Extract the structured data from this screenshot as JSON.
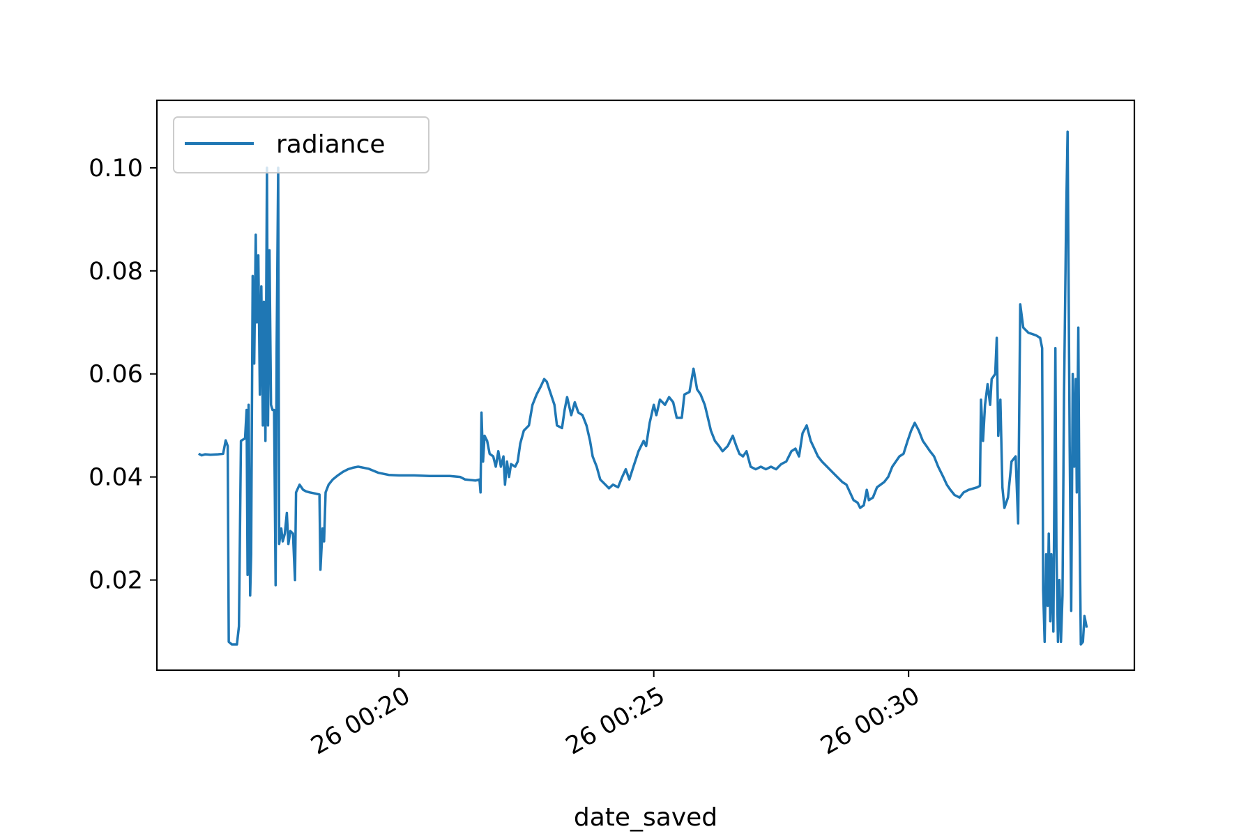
{
  "chart_data": {
    "type": "line",
    "title": "",
    "xlabel": "date_saved",
    "ylabel": "",
    "x_ticks": [
      {
        "value": 20,
        "label": "26 00:20"
      },
      {
        "value": 25,
        "label": "26 00:25"
      },
      {
        "value": 30,
        "label": "26 00:30"
      }
    ],
    "y_ticks": [
      {
        "value": 0.02,
        "label": "0.02"
      },
      {
        "value": 0.04,
        "label": "0.04"
      },
      {
        "value": 0.06,
        "label": "0.06"
      },
      {
        "value": 0.08,
        "label": "0.08"
      },
      {
        "value": 0.1,
        "label": "0.10"
      }
    ],
    "xlim": [
      15.25,
      34.43
    ],
    "ylim": [
      0.0025,
      0.1131
    ],
    "grid": false,
    "legend_position": "upper-left",
    "colors": {
      "series": "#1f77b4",
      "axes": "#000000",
      "legend_border": "#cccccc"
    },
    "series": [
      {
        "name": "radiance",
        "points": [
          [
            16.09,
            0.0444
          ],
          [
            16.13,
            0.0442
          ],
          [
            16.2,
            0.0444
          ],
          [
            16.3,
            0.0443
          ],
          [
            16.45,
            0.0444
          ],
          [
            16.55,
            0.0445
          ],
          [
            16.6,
            0.0471
          ],
          [
            16.64,
            0.046
          ],
          [
            16.66,
            0.008
          ],
          [
            16.72,
            0.0075
          ],
          [
            16.82,
            0.0075
          ],
          [
            16.86,
            0.011
          ],
          [
            16.9,
            0.047
          ],
          [
            16.98,
            0.0475
          ],
          [
            17.01,
            0.053
          ],
          [
            17.03,
            0.021
          ],
          [
            17.05,
            0.054
          ],
          [
            17.08,
            0.017
          ],
          [
            17.1,
            0.025
          ],
          [
            17.13,
            0.079
          ],
          [
            17.16,
            0.062
          ],
          [
            17.19,
            0.087
          ],
          [
            17.21,
            0.07
          ],
          [
            17.24,
            0.083
          ],
          [
            17.27,
            0.056
          ],
          [
            17.3,
            0.077
          ],
          [
            17.33,
            0.05
          ],
          [
            17.35,
            0.074
          ],
          [
            17.38,
            0.047
          ],
          [
            17.41,
            0.1
          ],
          [
            17.43,
            0.05
          ],
          [
            17.46,
            0.084
          ],
          [
            17.49,
            0.054
          ],
          [
            17.52,
            0.053
          ],
          [
            17.55,
            0.053
          ],
          [
            17.58,
            0.019
          ],
          [
            17.6,
            0.065
          ],
          [
            17.63,
            0.1
          ],
          [
            17.65,
            0.027
          ],
          [
            17.69,
            0.03
          ],
          [
            17.72,
            0.0275
          ],
          [
            17.76,
            0.029
          ],
          [
            17.8,
            0.033
          ],
          [
            17.83,
            0.027
          ],
          [
            17.87,
            0.0295
          ],
          [
            17.92,
            0.029
          ],
          [
            17.96,
            0.02
          ],
          [
            17.98,
            0.037
          ],
          [
            18.05,
            0.0385
          ],
          [
            18.12,
            0.0375
          ],
          [
            18.18,
            0.0372
          ],
          [
            18.25,
            0.037
          ],
          [
            18.35,
            0.0368
          ],
          [
            18.44,
            0.0366
          ],
          [
            18.46,
            0.022
          ],
          [
            18.5,
            0.03
          ],
          [
            18.53,
            0.0275
          ],
          [
            18.56,
            0.037
          ],
          [
            18.62,
            0.0385
          ],
          [
            18.7,
            0.0395
          ],
          [
            18.8,
            0.0403
          ],
          [
            18.9,
            0.041
          ],
          [
            19.0,
            0.0415
          ],
          [
            19.1,
            0.0418
          ],
          [
            19.2,
            0.042
          ],
          [
            19.3,
            0.0418
          ],
          [
            19.4,
            0.0416
          ],
          [
            19.5,
            0.0412
          ],
          [
            19.6,
            0.0408
          ],
          [
            19.8,
            0.0404
          ],
          [
            20.0,
            0.0403
          ],
          [
            20.3,
            0.0403
          ],
          [
            20.6,
            0.0402
          ],
          [
            21.0,
            0.0402
          ],
          [
            21.2,
            0.04
          ],
          [
            21.3,
            0.0395
          ],
          [
            21.5,
            0.0393
          ],
          [
            21.58,
            0.0395
          ],
          [
            21.6,
            0.037
          ],
          [
            21.62,
            0.0525
          ],
          [
            21.65,
            0.043
          ],
          [
            21.68,
            0.048
          ],
          [
            21.73,
            0.047
          ],
          [
            21.78,
            0.0445
          ],
          [
            21.85,
            0.044
          ],
          [
            21.9,
            0.042
          ],
          [
            21.95,
            0.045
          ],
          [
            22.0,
            0.042
          ],
          [
            22.05,
            0.044
          ],
          [
            22.08,
            0.0385
          ],
          [
            22.12,
            0.043
          ],
          [
            22.16,
            0.04
          ],
          [
            22.2,
            0.0425
          ],
          [
            22.28,
            0.042
          ],
          [
            22.33,
            0.043
          ],
          [
            22.38,
            0.0465
          ],
          [
            22.45,
            0.049
          ],
          [
            22.55,
            0.05
          ],
          [
            22.62,
            0.054
          ],
          [
            22.7,
            0.056
          ],
          [
            22.78,
            0.0575
          ],
          [
            22.85,
            0.059
          ],
          [
            22.9,
            0.0585
          ],
          [
            22.95,
            0.057
          ],
          [
            23.05,
            0.054
          ],
          [
            23.1,
            0.05
          ],
          [
            23.2,
            0.0495
          ],
          [
            23.25,
            0.053
          ],
          [
            23.3,
            0.0555
          ],
          [
            23.38,
            0.052
          ],
          [
            23.45,
            0.0545
          ],
          [
            23.52,
            0.0525
          ],
          [
            23.6,
            0.052
          ],
          [
            23.68,
            0.05
          ],
          [
            23.75,
            0.047
          ],
          [
            23.8,
            0.044
          ],
          [
            23.88,
            0.042
          ],
          [
            23.95,
            0.0395
          ],
          [
            24.05,
            0.0385
          ],
          [
            24.12,
            0.0378
          ],
          [
            24.2,
            0.0385
          ],
          [
            24.3,
            0.038
          ],
          [
            24.38,
            0.04
          ],
          [
            24.45,
            0.0415
          ],
          [
            24.52,
            0.0395
          ],
          [
            24.6,
            0.042
          ],
          [
            24.7,
            0.045
          ],
          [
            24.8,
            0.047
          ],
          [
            24.85,
            0.046
          ],
          [
            24.92,
            0.0505
          ],
          [
            25.0,
            0.054
          ],
          [
            25.05,
            0.052
          ],
          [
            25.12,
            0.055
          ],
          [
            25.22,
            0.054
          ],
          [
            25.3,
            0.0555
          ],
          [
            25.38,
            0.0545
          ],
          [
            25.45,
            0.0515
          ],
          [
            25.55,
            0.0515
          ],
          [
            25.6,
            0.056
          ],
          [
            25.7,
            0.0565
          ],
          [
            25.78,
            0.061
          ],
          [
            25.85,
            0.057
          ],
          [
            25.92,
            0.056
          ],
          [
            26.0,
            0.054
          ],
          [
            26.05,
            0.052
          ],
          [
            26.12,
            0.049
          ],
          [
            26.2,
            0.047
          ],
          [
            26.28,
            0.046
          ],
          [
            26.35,
            0.045
          ],
          [
            26.45,
            0.046
          ],
          [
            26.55,
            0.048
          ],
          [
            26.62,
            0.046
          ],
          [
            26.68,
            0.0445
          ],
          [
            26.75,
            0.044
          ],
          [
            26.82,
            0.045
          ],
          [
            26.9,
            0.042
          ],
          [
            27.0,
            0.0415
          ],
          [
            27.1,
            0.042
          ],
          [
            27.2,
            0.0415
          ],
          [
            27.3,
            0.042
          ],
          [
            27.4,
            0.0415
          ],
          [
            27.5,
            0.0425
          ],
          [
            27.6,
            0.043
          ],
          [
            27.7,
            0.045
          ],
          [
            27.78,
            0.0455
          ],
          [
            27.85,
            0.044
          ],
          [
            27.92,
            0.0485
          ],
          [
            28.0,
            0.05
          ],
          [
            28.08,
            0.047
          ],
          [
            28.15,
            0.0455
          ],
          [
            28.22,
            0.044
          ],
          [
            28.3,
            0.043
          ],
          [
            28.4,
            0.042
          ],
          [
            28.5,
            0.041
          ],
          [
            28.6,
            0.04
          ],
          [
            28.7,
            0.039
          ],
          [
            28.78,
            0.0385
          ],
          [
            28.85,
            0.037
          ],
          [
            28.92,
            0.0355
          ],
          [
            29.0,
            0.035
          ],
          [
            29.05,
            0.034
          ],
          [
            29.12,
            0.0345
          ],
          [
            29.18,
            0.0375
          ],
          [
            29.22,
            0.0355
          ],
          [
            29.3,
            0.036
          ],
          [
            29.38,
            0.038
          ],
          [
            29.45,
            0.0385
          ],
          [
            29.52,
            0.039
          ],
          [
            29.6,
            0.04
          ],
          [
            29.68,
            0.042
          ],
          [
            29.75,
            0.043
          ],
          [
            29.82,
            0.044
          ],
          [
            29.9,
            0.0445
          ],
          [
            29.98,
            0.047
          ],
          [
            30.05,
            0.049
          ],
          [
            30.12,
            0.0505
          ],
          [
            30.2,
            0.049
          ],
          [
            30.28,
            0.047
          ],
          [
            30.35,
            0.046
          ],
          [
            30.42,
            0.045
          ],
          [
            30.5,
            0.044
          ],
          [
            30.58,
            0.042
          ],
          [
            30.68,
            0.04
          ],
          [
            30.75,
            0.0385
          ],
          [
            30.82,
            0.0375
          ],
          [
            30.9,
            0.0365
          ],
          [
            31.0,
            0.036
          ],
          [
            31.08,
            0.037
          ],
          [
            31.18,
            0.0375
          ],
          [
            31.28,
            0.0378
          ],
          [
            31.35,
            0.038
          ],
          [
            31.4,
            0.0383
          ],
          [
            31.42,
            0.055
          ],
          [
            31.46,
            0.047
          ],
          [
            31.5,
            0.054
          ],
          [
            31.55,
            0.058
          ],
          [
            31.6,
            0.054
          ],
          [
            31.63,
            0.059
          ],
          [
            31.7,
            0.06
          ],
          [
            31.73,
            0.067
          ],
          [
            31.76,
            0.048
          ],
          [
            31.8,
            0.055
          ],
          [
            31.84,
            0.038
          ],
          [
            31.88,
            0.034
          ],
          [
            31.95,
            0.036
          ],
          [
            32.02,
            0.043
          ],
          [
            32.1,
            0.044
          ],
          [
            32.15,
            0.031
          ],
          [
            32.19,
            0.0735
          ],
          [
            32.25,
            0.069
          ],
          [
            32.35,
            0.068
          ],
          [
            32.5,
            0.0675
          ],
          [
            32.58,
            0.067
          ],
          [
            32.62,
            0.065
          ],
          [
            32.64,
            0.018
          ],
          [
            32.67,
            0.008
          ],
          [
            32.7,
            0.025
          ],
          [
            32.73,
            0.015
          ],
          [
            32.75,
            0.029
          ],
          [
            32.78,
            0.012
          ],
          [
            32.8,
            0.025
          ],
          [
            32.84,
            0.01
          ],
          [
            32.88,
            0.065
          ],
          [
            32.9,
            0.026
          ],
          [
            32.93,
            0.008
          ],
          [
            32.96,
            0.02
          ],
          [
            32.99,
            0.008
          ],
          [
            33.02,
            0.017
          ],
          [
            33.05,
            0.056
          ],
          [
            33.09,
            0.09
          ],
          [
            33.12,
            0.107
          ],
          [
            33.16,
            0.046
          ],
          [
            33.19,
            0.014
          ],
          [
            33.22,
            0.06
          ],
          [
            33.25,
            0.042
          ],
          [
            33.28,
            0.059
          ],
          [
            33.3,
            0.037
          ],
          [
            33.33,
            0.069
          ],
          [
            33.35,
            0.035
          ],
          [
            33.38,
            0.0075
          ],
          [
            33.42,
            0.008
          ],
          [
            33.45,
            0.013
          ],
          [
            33.49,
            0.011
          ]
        ]
      }
    ]
  }
}
